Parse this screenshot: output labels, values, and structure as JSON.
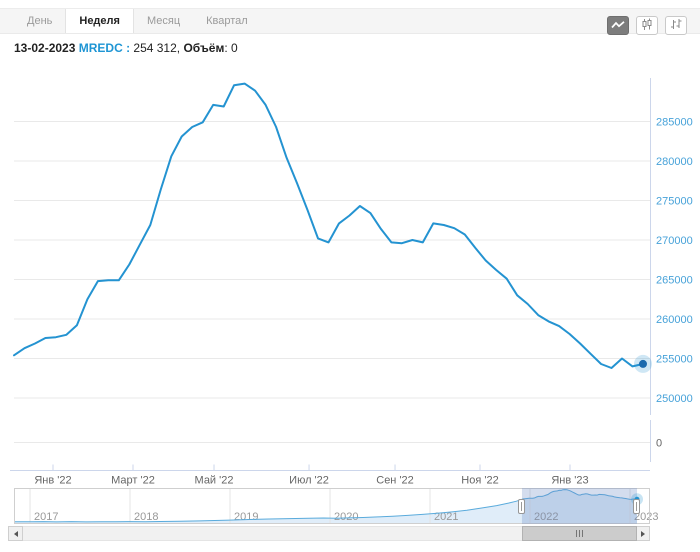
{
  "tabs": {
    "items": [
      {
        "label": "День",
        "active": false
      },
      {
        "label": "Неделя",
        "active": true
      },
      {
        "label": "Месяц",
        "active": false
      },
      {
        "label": "Квартал",
        "active": false
      }
    ]
  },
  "toolbar": {
    "buttons": [
      {
        "icon": "line-chart-icon",
        "active": true
      },
      {
        "icon": "candlestick-chart-icon",
        "active": false
      },
      {
        "icon": "ohlc-chart-icon",
        "active": false
      }
    ]
  },
  "header": {
    "date": "13-02-2023",
    "ticker": "MREDC",
    "ticker_sep": " : ",
    "value": "254 312, ",
    "volume_label": "Объём",
    "volume_value": ": 0"
  },
  "chart_data": {
    "type": "line",
    "series_name": "MREDC",
    "line_color": "#2493d1",
    "label_color": "#47a2d9",
    "x_unit": "week",
    "start_date": "2021-12-20",
    "end_date": "2023-02-13",
    "values": [
      255400,
      256300,
      256900,
      257600,
      257700,
      258000,
      259200,
      262500,
      264800,
      264900,
      264900,
      266900,
      269400,
      271900,
      276400,
      280600,
      283100,
      284300,
      284900,
      287100,
      286900,
      289600,
      289800,
      288900,
      287100,
      284300,
      280400,
      277200,
      273800,
      270200,
      269700,
      272100,
      273100,
      274300,
      273400,
      271400,
      269700,
      269600,
      270000,
      269700,
      272100,
      271900,
      271500,
      270700,
      269000,
      267400,
      266200,
      265100,
      263000,
      261900,
      260500,
      259700,
      259100,
      258100,
      256900,
      255600,
      254300,
      253800,
      255000,
      254000,
      254312
    ],
    "last_point": {
      "date": "13-02-2023",
      "value": 254312,
      "volume": 0
    },
    "ylim": [
      248500,
      290600
    ],
    "grid": true,
    "legend": "none",
    "y_ticks": [
      285000,
      280000,
      275000,
      270000,
      265000,
      260000,
      255000,
      250000
    ],
    "x_ticks": [
      {
        "label": "Янв '22",
        "f": 0.0613
      },
      {
        "label": "Март '22",
        "f": 0.1871
      },
      {
        "label": "Май '22",
        "f": 0.3145
      },
      {
        "label": "Июл '22",
        "f": 0.4639
      },
      {
        "label": "Сен '22",
        "f": 0.5991
      },
      {
        "label": "Ноя '22",
        "f": 0.7327
      },
      {
        "label": "Янв '23",
        "f": 0.8742
      }
    ],
    "volume_axis": {
      "zero_label": "0"
    },
    "navigator": {
      "ticks": [
        {
          "label": "2017",
          "f": 0.0252
        },
        {
          "label": "2018",
          "f": 0.1824
        },
        {
          "label": "2019",
          "f": 0.3396
        },
        {
          "label": "2020",
          "f": 0.4969
        },
        {
          "label": "2021",
          "f": 0.6541
        },
        {
          "label": "2022",
          "f": 0.8113
        },
        {
          "label": "2023",
          "f": 0.9686
        }
      ],
      "history_points": [
        [
          2016.82,
          171500
        ],
        [
          2017.0,
          171000
        ],
        [
          2017.12,
          172000
        ],
        [
          2017.25,
          170900
        ],
        [
          2017.4,
          171800
        ],
        [
          2017.55,
          170900
        ],
        [
          2017.7,
          171600
        ],
        [
          2017.85,
          171100
        ],
        [
          2018.0,
          171900
        ],
        [
          2018.15,
          171500
        ],
        [
          2018.3,
          172300
        ],
        [
          2018.5,
          173200
        ],
        [
          2018.7,
          174600
        ],
        [
          2018.85,
          175800
        ],
        [
          2019.0,
          177200
        ],
        [
          2019.2,
          179600
        ],
        [
          2019.4,
          181400
        ],
        [
          2019.6,
          182800
        ],
        [
          2019.8,
          184200
        ],
        [
          2019.95,
          185200
        ],
        [
          2020.08,
          184300
        ],
        [
          2020.2,
          185400
        ],
        [
          2020.35,
          187000
        ],
        [
          2020.5,
          189200
        ],
        [
          2020.65,
          191800
        ],
        [
          2020.8,
          194800
        ],
        [
          2020.95,
          198200
        ],
        [
          2021.1,
          202500
        ],
        [
          2021.25,
          207500
        ],
        [
          2021.4,
          214000
        ],
        [
          2021.55,
          222000
        ],
        [
          2021.7,
          231000
        ],
        [
          2021.82,
          240000
        ],
        [
          2021.9,
          247000
        ]
      ],
      "selection": {
        "f1": 0.7987,
        "f2": 0.9796
      },
      "value_range": [
        163000,
        292000
      ]
    }
  }
}
